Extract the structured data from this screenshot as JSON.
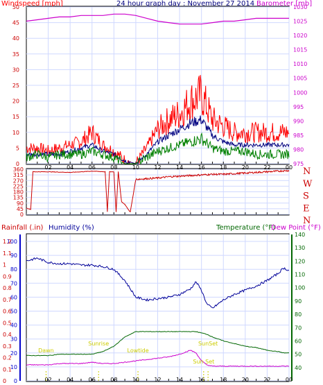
{
  "colors": {
    "wind": "#ff0000",
    "gust_avg": "#000080",
    "wind_avg": "#008000",
    "barometer": "#cc00cc",
    "winddir": "#cc0000",
    "rain_axis": "#cc0000",
    "humidity": "#000099",
    "temperature": "#006600",
    "dewpoint": "#cc00cc",
    "sun_text": "#cccc00",
    "grid": "#cfd8ff",
    "axis_blue": "#0000cc"
  },
  "chart_data": [
    {
      "id": "wind-baro",
      "type": "line",
      "title": "24 hour graph day : November 27 2014",
      "ylabel": "Windspeed [mph]",
      "y2label": "Barometer [mb]",
      "ylim": [
        0,
        50
      ],
      "y2lim": [
        975,
        1030
      ],
      "y_ticks": [
        "0",
        "5",
        "10",
        "15",
        "20",
        "25",
        "30",
        "35",
        "40",
        "45",
        "50"
      ],
      "y2_ticks": [
        "975",
        "980",
        "985",
        "990",
        "995",
        "1000",
        "1005",
        "1010",
        "1015",
        "1020",
        "1025",
        "1030"
      ],
      "x_ticks": [
        "02",
        "04",
        "06",
        "08",
        "10",
        "12",
        "14",
        "16",
        "18",
        "20",
        "22",
        "00"
      ],
      "x_hours": [
        0,
        1,
        2,
        3,
        4,
        5,
        6,
        7,
        8,
        9,
        10,
        11,
        12,
        13,
        14,
        15,
        16,
        17,
        18,
        19,
        20,
        21,
        22,
        23,
        24
      ],
      "series": [
        {
          "key": "wind_max",
          "values": [
            5,
            5,
            4,
            5,
            6,
            7,
            10,
            6,
            4,
            1,
            0,
            5,
            11,
            14,
            16,
            20,
            22,
            14,
            12,
            10,
            10,
            10,
            10,
            10,
            10
          ]
        },
        {
          "key": "wind_avg_blue",
          "values": [
            3,
            3,
            3,
            3,
            4,
            5,
            6,
            4,
            3,
            1,
            0,
            3,
            7,
            9,
            11,
            13,
            14,
            9,
            7,
            6,
            6,
            6,
            6,
            6,
            6
          ]
        },
        {
          "key": "wind_avg_green",
          "values": [
            2,
            3,
            2,
            3,
            3,
            3,
            4,
            3,
            2,
            0,
            0,
            2,
            4,
            5,
            6,
            7,
            8,
            5,
            4,
            4,
            4,
            3,
            3,
            3,
            3
          ]
        },
        {
          "key": "barometer",
          "values": [
            1025,
            1025.5,
            1026,
            1026.5,
            1026.5,
            1027,
            1027,
            1027,
            1027.5,
            1027.5,
            1027,
            1026,
            1025,
            1024.5,
            1024,
            1024,
            1024,
            1024.5,
            1025,
            1025,
            1025.5,
            1026,
            1026,
            1026,
            1026
          ]
        }
      ]
    },
    {
      "id": "wind-direction",
      "type": "line",
      "ylim": [
        0,
        360
      ],
      "y_ticks": [
        "0",
        "45",
        "90",
        "135",
        "180",
        "225",
        "270",
        "315",
        "360"
      ],
      "dir_labels": [
        "N",
        "W",
        "S",
        "E",
        "N"
      ],
      "x_hours": [
        0,
        0.4,
        0.6,
        2,
        4,
        6,
        7.2,
        7.4,
        7.6,
        8,
        8.2,
        8.4,
        8.7,
        9,
        9.3,
        9.5,
        10,
        11,
        12,
        13,
        14,
        15,
        16,
        17,
        18,
        19,
        20,
        21,
        22,
        23,
        24
      ],
      "values": [
        50,
        40,
        340,
        340,
        335,
        345,
        340,
        20,
        340,
        340,
        20,
        340,
        100,
        80,
        40,
        20,
        280,
        285,
        290,
        300,
        305,
        310,
        315,
        320,
        320,
        325,
        330,
        335,
        340,
        345,
        350
      ]
    },
    {
      "id": "rain-hum-temp",
      "type": "line",
      "ylabel": "Rainfall (.in)",
      "y2label": "Humidity (%)",
      "y3label": "Temperature (°F)",
      "y4label": "Dew Point (°F)",
      "rain_ticks": [
        "0",
        "0.1",
        "0.2",
        "0.3",
        "0.4",
        "0.5",
        "0.6",
        "0.7",
        "0.8",
        "0.9",
        "1",
        "1.1",
        "1.2"
      ],
      "hum_ticks": [
        "0",
        "10",
        "20",
        "30",
        "40",
        "50",
        "60",
        "70",
        "80",
        "90",
        "100"
      ],
      "temp_ticks": [
        "40",
        "50",
        "60",
        "70",
        "80",
        "90",
        "100",
        "110",
        "120",
        "130",
        "140"
      ],
      "humlim": [
        0,
        100
      ],
      "templim": [
        30,
        140
      ],
      "x_hours": [
        0,
        1,
        2,
        3,
        4,
        5,
        6,
        7,
        8,
        9,
        10,
        11,
        12,
        13,
        14,
        15,
        15.5,
        16,
        16.5,
        17,
        18,
        19,
        20,
        21,
        22,
        23,
        23.5,
        24
      ],
      "humidity": [
        86,
        88,
        85,
        84,
        84,
        83,
        83,
        82,
        80,
        72,
        60,
        58,
        59,
        60,
        62,
        66,
        71,
        65,
        55,
        52,
        58,
        62,
        65,
        68,
        72,
        77,
        81,
        79
      ],
      "temperature": [
        49,
        49,
        49,
        50,
        50,
        50,
        50,
        52,
        56,
        63,
        67,
        67,
        67,
        67,
        67,
        67,
        67,
        66,
        65,
        63,
        60,
        58,
        56,
        55,
        53,
        52,
        51,
        51
      ],
      "dewpoint": [
        42,
        42,
        42,
        43,
        43,
        43,
        44,
        43,
        43,
        44,
        45,
        46,
        47,
        48,
        50,
        53,
        51,
        45,
        42,
        41,
        41,
        41,
        41,
        41,
        41,
        41,
        41,
        41
      ],
      "sun_events": [
        {
          "label": "Dawn",
          "hour": 1.8
        },
        {
          "label": "Sunrise",
          "hour": 6.6
        },
        {
          "label": "Lowtide",
          "hour": 10.2
        },
        {
          "label": "SunSet",
          "hour": 16.6
        },
        {
          "label": "Sun Set",
          "hour": 16.2
        }
      ]
    }
  ]
}
